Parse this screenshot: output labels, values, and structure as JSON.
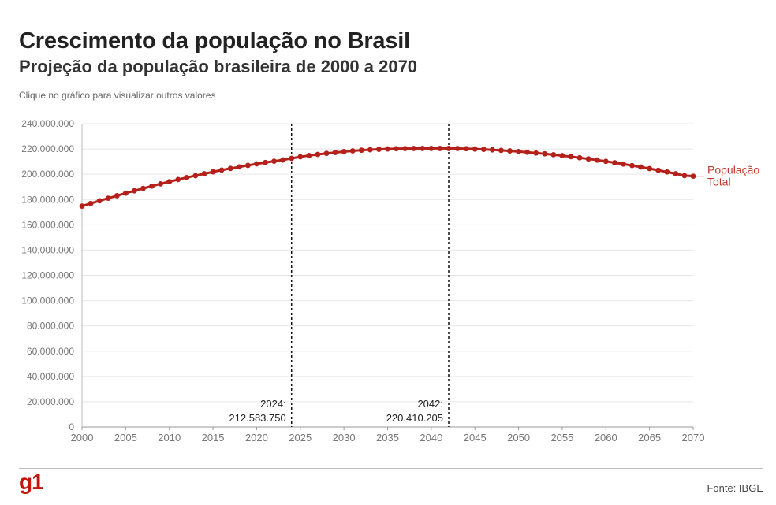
{
  "header": {
    "title": "Crescimento da população no Brasil",
    "subtitle": "Projeção da população brasileira de 2000 a 2070",
    "hint": "Clique no gráfico para visualizar outros valores"
  },
  "footer": {
    "logo": "g1",
    "source": "Fonte: IBGE"
  },
  "colors": {
    "series": "#b5201a",
    "label": "#c0392b",
    "grid": "#e6e6e6",
    "tick": "#777777",
    "logo": "#c4170c"
  },
  "chart_data": {
    "type": "line",
    "title": "Crescimento da população no Brasil",
    "subtitle": "Projeção da população brasileira de 2000 a 2070",
    "xlabel": "",
    "ylabel": "",
    "xlim": [
      2000,
      2070
    ],
    "ylim": [
      0,
      240000000
    ],
    "grid": true,
    "x_ticks": [
      "2000",
      "2005",
      "2010",
      "2015",
      "2020",
      "2025",
      "2030",
      "2035",
      "2040",
      "2045",
      "2050",
      "2055",
      "2060",
      "2065",
      "2070"
    ],
    "y_ticks": [
      "0",
      "20.000.000",
      "40.000.000",
      "60.000.000",
      "80.000.000",
      "100.000.000",
      "120.000.000",
      "140.000.000",
      "160.000.000",
      "180.000.000",
      "200.000.000",
      "220.000.000",
      "240.000.000"
    ],
    "x": [
      2000,
      2001,
      2002,
      2003,
      2004,
      2005,
      2006,
      2007,
      2008,
      2009,
      2010,
      2011,
      2012,
      2013,
      2014,
      2015,
      2016,
      2017,
      2018,
      2019,
      2020,
      2021,
      2022,
      2023,
      2024,
      2025,
      2026,
      2027,
      2028,
      2029,
      2030,
      2031,
      2032,
      2033,
      2034,
      2035,
      2036,
      2037,
      2038,
      2039,
      2040,
      2041,
      2042,
      2043,
      2044,
      2045,
      2046,
      2047,
      2048,
      2049,
      2050,
      2051,
      2052,
      2053,
      2054,
      2055,
      2056,
      2057,
      2058,
      2059,
      2060,
      2061,
      2062,
      2063,
      2064,
      2065,
      2066,
      2067,
      2068,
      2069,
      2070
    ],
    "series": [
      {
        "name": "População Total",
        "label_lines": [
          "População",
          "Total"
        ],
        "values": [
          174800000,
          176900000,
          179000000,
          181000000,
          183000000,
          185000000,
          186900000,
          188800000,
          190600000,
          192400000,
          194100000,
          195800000,
          197400000,
          198900000,
          200400000,
          201900000,
          203300000,
          204600000,
          205800000,
          207000000,
          208200000,
          209300000,
          210300000,
          211300000,
          212583750,
          213800000,
          214800000,
          215700000,
          216500000,
          217200000,
          217900000,
          218500000,
          219000000,
          219400000,
          219700000,
          220000000,
          220200000,
          220300000,
          220380000,
          220400000,
          220405000,
          220408000,
          220410205,
          220350000,
          220200000,
          219950000,
          219650000,
          219300000,
          218900000,
          218450000,
          217950000,
          217400000,
          216800000,
          216150000,
          215450000,
          214700000,
          213900000,
          213050000,
          212150000,
          211200000,
          210200000,
          209150000,
          208050000,
          206900000,
          205700000,
          204450000,
          203150000,
          201800000,
          200400000,
          198950000,
          198450000
        ]
      }
    ],
    "annotations": [
      {
        "x": 2024,
        "label_year": "2024:",
        "label_value": "212.583.750"
      },
      {
        "x": 2042,
        "label_year": "2042:",
        "label_value": "220.410.205"
      }
    ]
  }
}
